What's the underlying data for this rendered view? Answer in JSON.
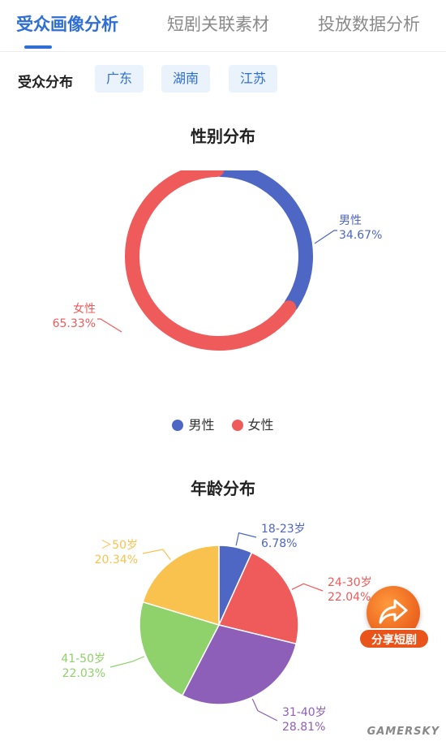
{
  "tabs": [
    {
      "label": "受众画像分析"
    },
    {
      "label": "短剧关联素材"
    },
    {
      "label": "投放数据分析"
    }
  ],
  "region": {
    "label": "受众分布",
    "chips": [
      "广东",
      "湖南",
      "江苏"
    ]
  },
  "charts": {
    "gender_title": "性别分布",
    "age_title": "年龄分布"
  },
  "legend": [
    {
      "label": "男性",
      "color": "#4e66c4"
    },
    {
      "label": "女性",
      "color": "#ef5b5b"
    }
  ],
  "chart_data": [
    {
      "type": "pie",
      "title": "性别分布",
      "donut": true,
      "legend_position": "bottom",
      "series": [
        {
          "name": "男性",
          "value": 34.67,
          "label": "34.67%",
          "color": "#4e66c4"
        },
        {
          "name": "女性",
          "value": 65.33,
          "label": "65.33%",
          "color": "#ef5b5b"
        }
      ]
    },
    {
      "type": "pie",
      "title": "年龄分布",
      "series": [
        {
          "name": "18-23岁",
          "value": 6.78,
          "label": "6.78%",
          "color": "#4e66c4"
        },
        {
          "name": "24-30岁",
          "value": 22.04,
          "label": "22.04%",
          "color": "#ef5b5b"
        },
        {
          "name": "31-40岁",
          "value": 28.81,
          "label": "28.81%",
          "color": "#8e5fb8"
        },
        {
          "name": "41-50岁",
          "value": 22.03,
          "label": "22.03%",
          "color": "#8fd16a"
        },
        {
          "name": "＞50岁",
          "value": 20.34,
          "label": "20.34%",
          "color": "#f9c24f"
        }
      ]
    }
  ],
  "share": {
    "label": "分享短剧",
    "icon": "share-arrow-icon"
  },
  "watermark": "GAMERSKY"
}
